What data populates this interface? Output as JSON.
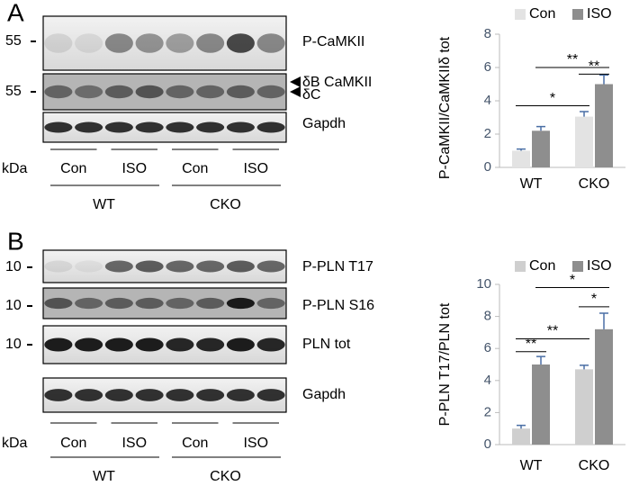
{
  "panelA": {
    "label": "A",
    "markers": [
      "55",
      "55"
    ],
    "blots": [
      "P-CaMKII",
      "δB CaMKII",
      "δC",
      "Gapdh"
    ],
    "unit": "kDa",
    "lanes": [
      "Con",
      "ISO",
      "Con",
      "ISO"
    ],
    "groups": [
      "WT",
      "CKO"
    ]
  },
  "panelB": {
    "label": "B",
    "markers": [
      "10",
      "10",
      "10"
    ],
    "blots": [
      "P-PLN T17",
      "P-PLN S16",
      "PLN tot",
      "Gapdh"
    ],
    "unit": "kDa",
    "lanes": [
      "Con",
      "ISO",
      "Con",
      "ISO"
    ],
    "groups": [
      "WT",
      "CKO"
    ]
  },
  "chart_data": [
    {
      "type": "bar",
      "ylabel": "P-CaMKII/CaMKIIδ tot",
      "categories": [
        "WT",
        "CKO"
      ],
      "series": [
        {
          "name": "Con",
          "color": "#e3e3e3",
          "values": [
            1.0,
            3.05
          ],
          "errors": [
            0.1,
            0.3
          ]
        },
        {
          "name": "ISO",
          "color": "#8e8e8e",
          "values": [
            2.2,
            5.0
          ],
          "errors": [
            0.25,
            0.55
          ]
        }
      ],
      "ylim": [
        0,
        8
      ],
      "yticks": [
        0,
        2,
        4,
        6,
        8
      ],
      "annotations": [
        "*",
        "**",
        "**"
      ]
    },
    {
      "type": "bar",
      "ylabel": "P-PLN T17/PLN tot",
      "categories": [
        "WT",
        "CKO"
      ],
      "series": [
        {
          "name": "Con",
          "color": "#cfcfcf",
          "values": [
            1.0,
            4.7
          ],
          "errors": [
            0.2,
            0.25
          ]
        },
        {
          "name": "ISO",
          "color": "#8e8e8e",
          "values": [
            5.0,
            7.2
          ],
          "errors": [
            0.5,
            1.0
          ]
        }
      ],
      "ylim": [
        0,
        10
      ],
      "yticks": [
        0,
        2,
        4,
        6,
        8,
        10
      ],
      "annotations": [
        "**",
        "**",
        "*",
        "*"
      ]
    }
  ]
}
